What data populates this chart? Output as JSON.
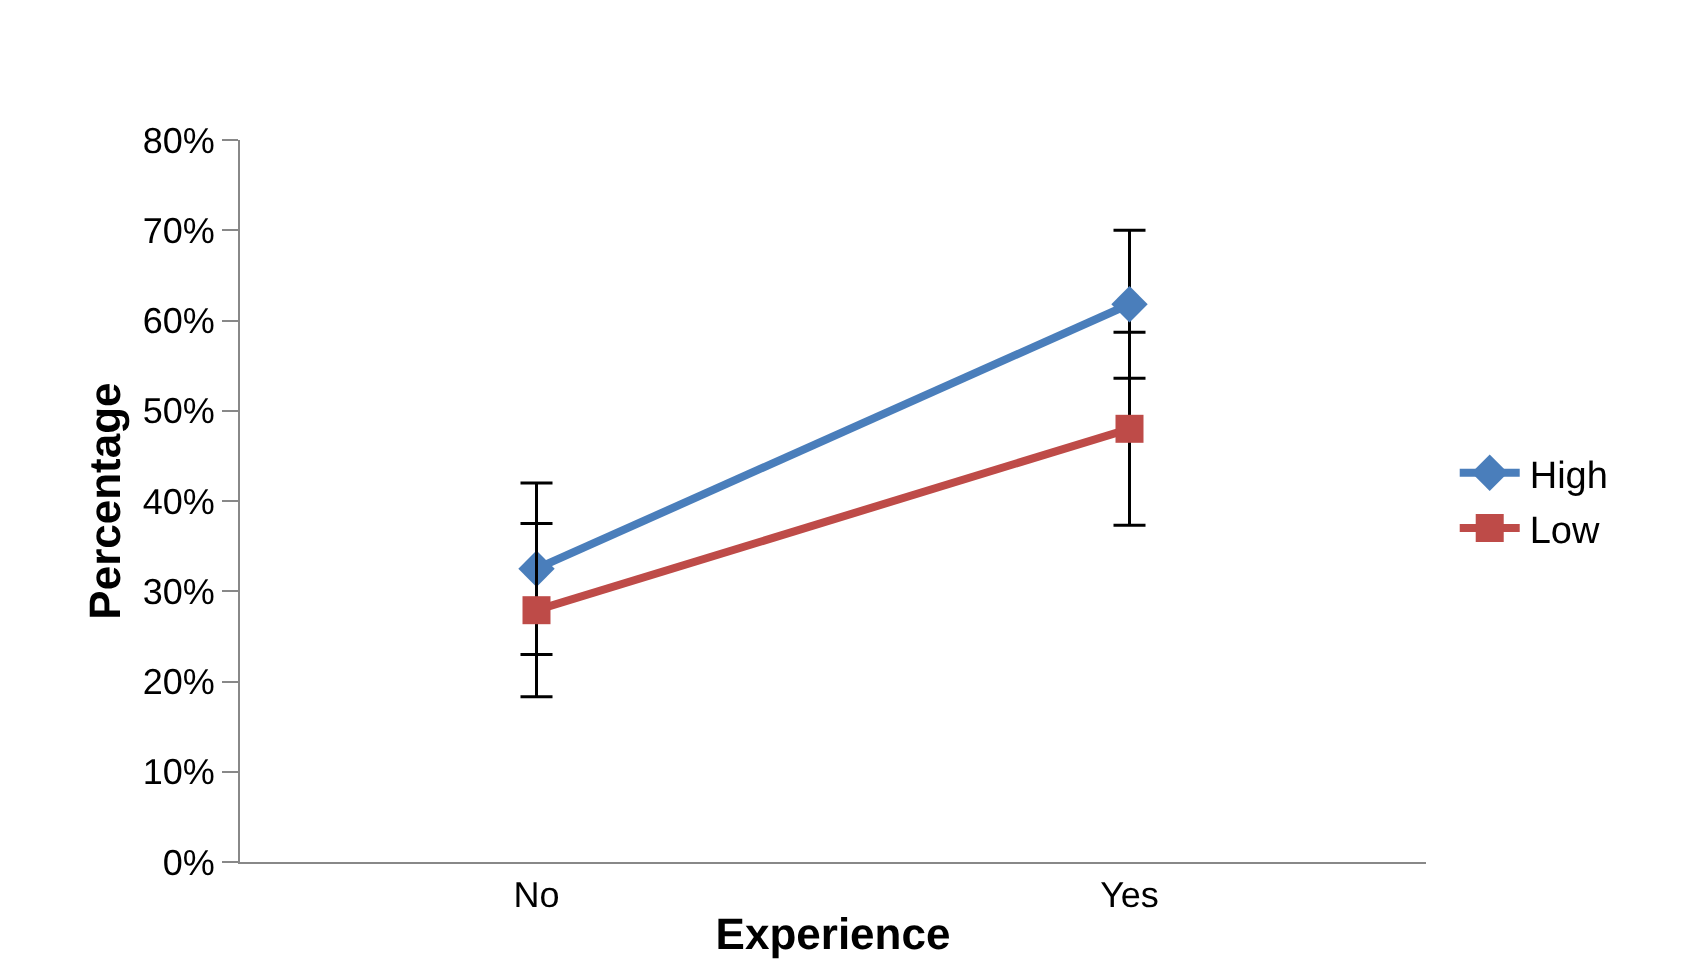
{
  "chart_data": {
    "type": "line",
    "xlabel": "Experience",
    "ylabel": "Percentage",
    "categories": [
      "No",
      "Yes"
    ],
    "series": [
      {
        "name": "High",
        "color": "#4a7ebb",
        "values": [
          32.5,
          61.8
        ],
        "errors": [
          9.5,
          8.2
        ],
        "marker": "diamond"
      },
      {
        "name": "Low",
        "color": "#be4b48",
        "values": [
          27.9,
          48.0
        ],
        "errors": [
          9.6,
          10.7
        ],
        "marker": "square"
      }
    ],
    "ylim": [
      0,
      80
    ],
    "yticks": [
      {
        "value": 0,
        "label": "0%"
      },
      {
        "value": 10,
        "label": "10%"
      },
      {
        "value": 20,
        "label": "20%"
      },
      {
        "value": 30,
        "label": "30%"
      },
      {
        "value": 40,
        "label": "40%"
      },
      {
        "value": 50,
        "label": "50%"
      },
      {
        "value": 60,
        "label": "60%"
      },
      {
        "value": 70,
        "label": "70%"
      },
      {
        "value": 80,
        "label": "80%"
      }
    ],
    "grid": false,
    "legend": "right",
    "line_style": "solid"
  }
}
